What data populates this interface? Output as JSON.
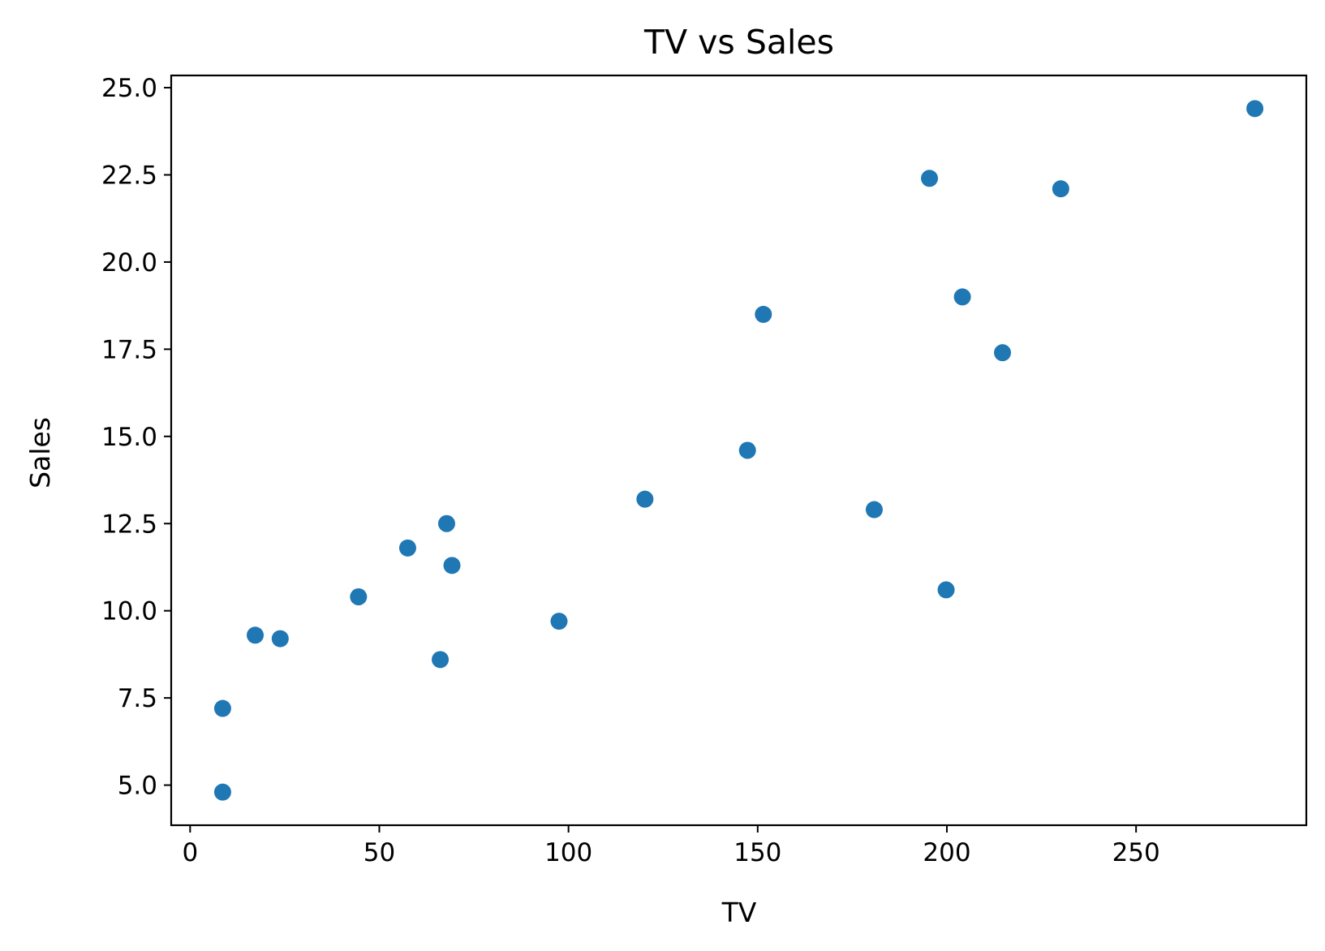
{
  "chart_data": {
    "type": "scatter",
    "title": "TV vs Sales",
    "xlabel": "TV",
    "ylabel": "Sales",
    "xlim": [
      -5,
      295
    ],
    "ylim": [
      3.85,
      25.35
    ],
    "xticks": [
      0,
      50,
      100,
      150,
      200,
      250
    ],
    "xtick_labels": [
      "0",
      "50",
      "100",
      "150",
      "200",
      "250"
    ],
    "yticks": [
      5.0,
      7.5,
      10.0,
      12.5,
      15.0,
      17.5,
      20.0,
      22.5,
      25.0
    ],
    "ytick_labels": [
      "5.0",
      "7.5",
      "10.0",
      "12.5",
      "15.0",
      "17.5",
      "20.0",
      "22.5",
      "25.0"
    ],
    "grid": false,
    "legend": "none",
    "marker_color": "#1f77b4",
    "points": [
      {
        "x": 8.6,
        "y": 4.8
      },
      {
        "x": 8.6,
        "y": 7.2
      },
      {
        "x": 17.2,
        "y": 9.3
      },
      {
        "x": 23.8,
        "y": 9.2
      },
      {
        "x": 44.5,
        "y": 10.4
      },
      {
        "x": 57.5,
        "y": 11.8
      },
      {
        "x": 66.1,
        "y": 8.6
      },
      {
        "x": 67.8,
        "y": 12.5
      },
      {
        "x": 69.2,
        "y": 11.3
      },
      {
        "x": 97.5,
        "y": 9.7
      },
      {
        "x": 120.2,
        "y": 13.2
      },
      {
        "x": 147.3,
        "y": 14.6
      },
      {
        "x": 151.5,
        "y": 18.5
      },
      {
        "x": 180.8,
        "y": 12.9
      },
      {
        "x": 195.4,
        "y": 22.4
      },
      {
        "x": 199.8,
        "y": 10.6
      },
      {
        "x": 204.1,
        "y": 19.0
      },
      {
        "x": 214.7,
        "y": 17.4
      },
      {
        "x": 230.1,
        "y": 22.1
      },
      {
        "x": 281.4,
        "y": 24.4
      }
    ]
  }
}
